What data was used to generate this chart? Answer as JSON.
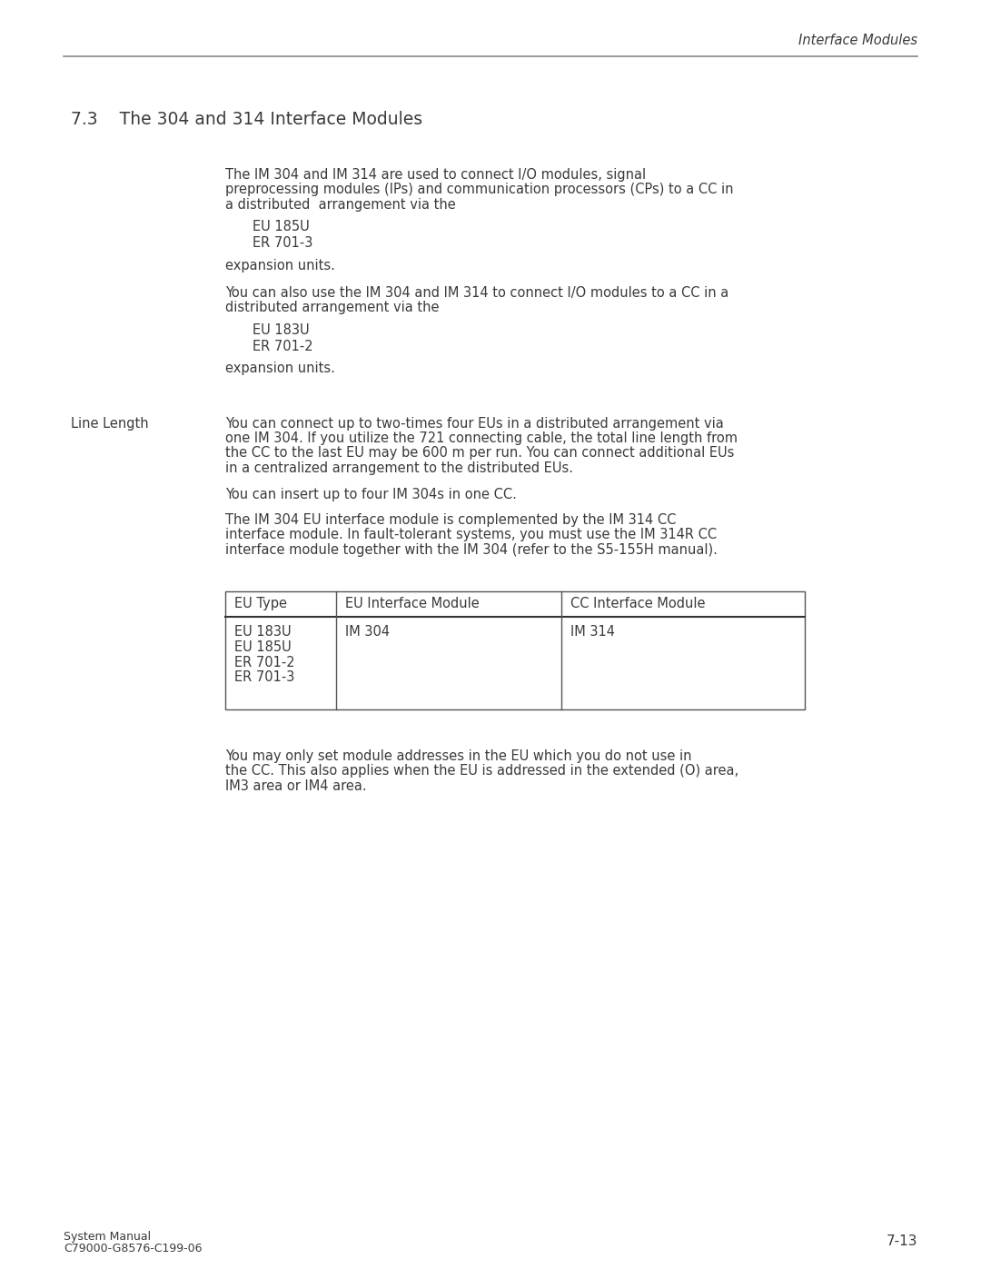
{
  "header_text": "Interface Modules",
  "section_title": "7.3    The 304 and 314 Interface Modules",
  "para1_lines": [
    "The IM 304 and IM 314 are used to connect I/O modules, signal",
    "preprocessing modules (IPs) and communication processors (CPs) to a CC in",
    "a distributed  arrangement via the"
  ],
  "bullet1a": "EU 185U",
  "bullet1b": "ER 701-3",
  "exp1": "expansion units.",
  "para2_lines": [
    "You can also use the IM 304 and IM 314 to connect I/O modules to a CC in a",
    "distributed arrangement via the"
  ],
  "bullet2a": "EU 183U",
  "bullet2b": "ER 701-2",
  "exp2": "expansion units.",
  "label_linelength": "Line Length",
  "para3_lines": [
    "You can connect up to two-times four EUs in a distributed arrangement via",
    "one IM 304. If you utilize the 721 connecting cable, the total line length from",
    "the CC to the last EU may be 600 m per run. You can connect additional EUs",
    "in a centralized arrangement to the distributed EUs."
  ],
  "para4": "You can insert up to four IM 304s in one CC.",
  "para5_lines": [
    "The IM 304 EU interface module is complemented by the IM 314 CC",
    "interface module. In fault-tolerant systems, you must use the IM 314R CC",
    "interface module together with the IM 304 (refer to the S5-155H manual)."
  ],
  "table_header": [
    "EU Type",
    "EU Interface Module",
    "CC Interface Module"
  ],
  "table_col1_items": [
    "EU 183U",
    "EU 185U",
    "ER 701-2",
    "ER 701-3"
  ],
  "table_col2": "IM 304",
  "table_col3": "IM 314",
  "para6_lines": [
    "You may only set module addresses in the EU which you do not use in",
    "the CC. This also applies when the EU is addressed in the extended (O) area,",
    "IM3 area or IM4 area."
  ],
  "footer_left_line1": "System Manual",
  "footer_left_line2": "C79000-G8576-C199-06",
  "footer_right": "7-13",
  "bg_color": "#ffffff",
  "text_color": "#3a3a3a",
  "line_color": "#888888"
}
